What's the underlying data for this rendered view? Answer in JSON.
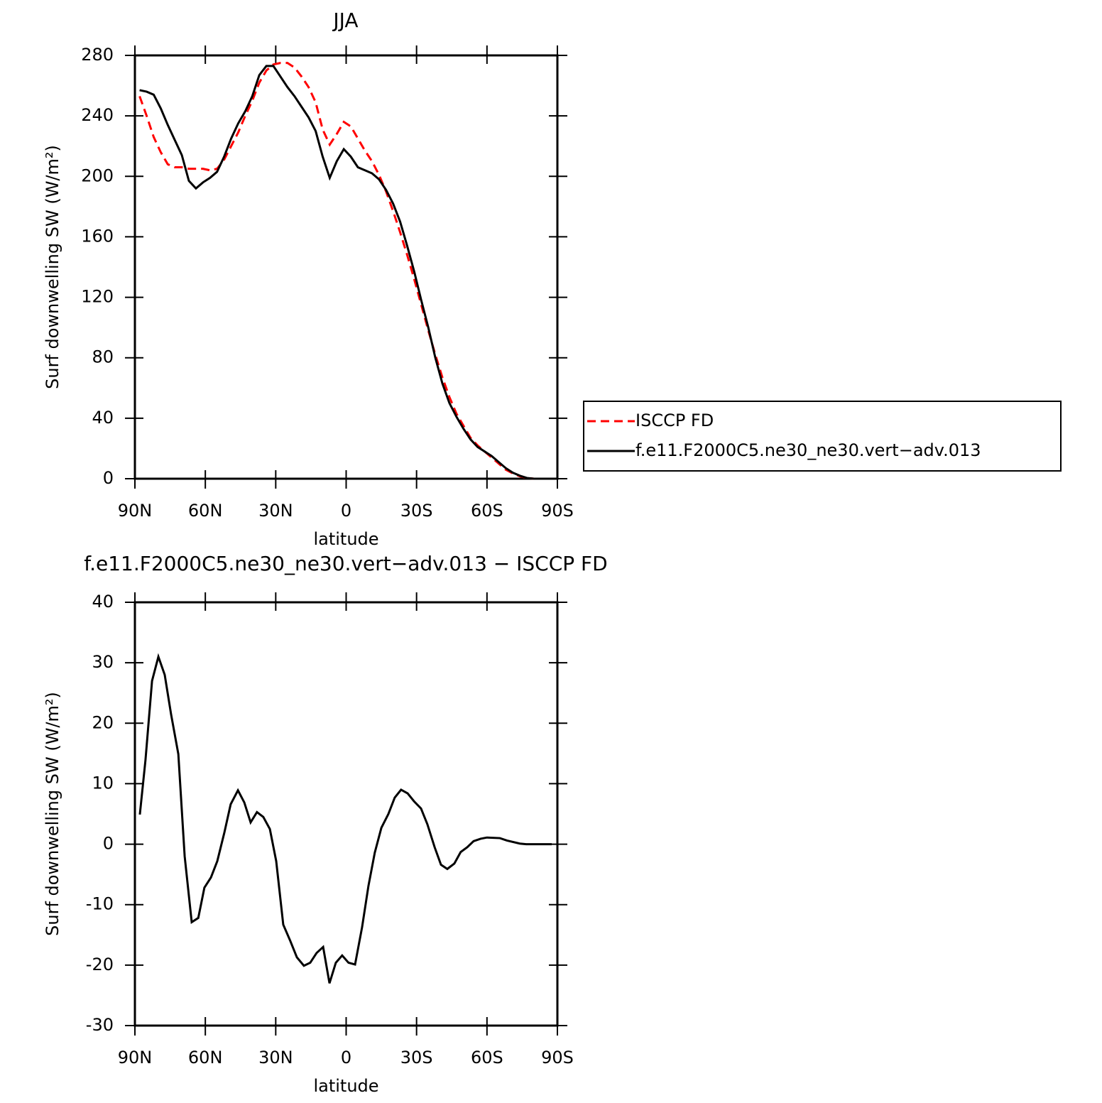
{
  "chart_data": [
    {
      "type": "line",
      "title": "JJA",
      "xlabel": "latitude",
      "ylabel": "Surf downwelling SW (W/m²)",
      "xlim": [
        90,
        -90
      ],
      "xticks": [
        {
          "value": 90,
          "label": "90N"
        },
        {
          "value": 60,
          "label": "60N"
        },
        {
          "value": 30,
          "label": "30N"
        },
        0,
        {
          "value": -30,
          "label": "30S"
        },
        {
          "value": -60,
          "label": "60S"
        },
        {
          "value": -90,
          "label": "90S"
        }
      ],
      "ylim": [
        0,
        280
      ],
      "yticks": [
        0,
        40,
        80,
        120,
        160,
        200,
        240,
        280
      ],
      "legend": "right",
      "x": [
        88,
        85,
        82,
        79,
        76,
        73,
        70,
        67,
        64,
        61,
        58,
        55,
        52,
        49,
        46,
        43,
        40,
        37,
        34,
        31,
        28,
        25,
        22,
        19,
        16,
        13,
        10,
        7,
        4,
        1,
        -2,
        -5,
        -8,
        -11,
        -14,
        -17,
        -20,
        -23,
        -26,
        -29,
        -32,
        -35,
        -38,
        -41,
        -44,
        -47,
        -50,
        -53,
        -56,
        -59,
        -62,
        -65,
        -68,
        -71,
        -74,
        -77,
        -80,
        -83,
        -86,
        -89
      ],
      "series": [
        {
          "name": "ISCCP FD",
          "color": "#ff0000",
          "style": "dashed",
          "values": [
            253,
            240,
            226,
            216,
            208,
            206,
            206,
            205,
            205,
            205,
            204,
            205,
            211,
            220,
            229,
            240,
            250,
            262,
            270,
            274,
            275,
            275,
            272,
            266,
            259,
            249,
            231,
            221,
            228,
            236,
            233,
            225,
            217,
            210,
            201,
            190,
            177,
            163,
            148,
            132,
            115,
            98,
            82,
            67,
            54,
            43,
            35,
            27,
            22,
            18,
            14,
            10,
            6,
            3.5,
            1.6,
            0.5,
            0,
            0,
            0,
            0
          ]
        },
        {
          "name": "f.e11.F2000C5.ne30_ne30.vert−adv.013",
          "color": "#000000",
          "style": "solid",
          "values": [
            257,
            256,
            254,
            245,
            234,
            224,
            214,
            197,
            192,
            196,
            199,
            203,
            213,
            225,
            235,
            243,
            253,
            267,
            273,
            273,
            266,
            259,
            253,
            246,
            239,
            230,
            213,
            199,
            210,
            218,
            213,
            206,
            204,
            202,
            198,
            191,
            182,
            170,
            154,
            137,
            118,
            100,
            80,
            63,
            50,
            41,
            33,
            26,
            21,
            18,
            15,
            11,
            7,
            4,
            2,
            0.5,
            0,
            0,
            0,
            0
          ]
        }
      ]
    },
    {
      "type": "line",
      "title": "f.e11.F2000C5.ne30_ne30.vert−adv.013 − ISCCP FD",
      "xlabel": "latitude",
      "ylabel": "Surf downwelling SW (W/m²)",
      "xlim": [
        90,
        -90
      ],
      "xticks": [
        {
          "value": 90,
          "label": "90N"
        },
        {
          "value": 60,
          "label": "60N"
        },
        {
          "value": 30,
          "label": "30N"
        },
        0,
        {
          "value": -30,
          "label": "30S"
        },
        {
          "value": -60,
          "label": "60S"
        },
        {
          "value": -90,
          "label": "90S"
        }
      ],
      "ylim": [
        -30,
        40
      ],
      "yticks": [
        -30,
        -20,
        -10,
        0,
        10,
        20,
        30,
        40
      ],
      "x": [
        87.9,
        85.5,
        82.7,
        80,
        77.3,
        74.6,
        71.5,
        68.8,
        65.8,
        63,
        60.4,
        57.6,
        54.9,
        51.9,
        49.2,
        46.1,
        43.4,
        40.7,
        38,
        35.3,
        32.5,
        29.8,
        26.8,
        23.8,
        21,
        18,
        15.3,
        12.6,
        9.8,
        7.1,
        4.4,
        1.7,
        -1,
        -3.8,
        -6.8,
        -9.5,
        -12.2,
        -15,
        -18,
        -20.7,
        -23.4,
        -26.2,
        -28.9,
        -31.9,
        -34.6,
        -37.7,
        -40.4,
        -43.1,
        -46.1,
        -48.8,
        -51.6,
        -54.3,
        -57.3,
        -60,
        -65.5,
        -68.5,
        -74,
        -76.7,
        -87.6
      ],
      "series": [
        {
          "name": "f.e11.F2000C5.ne30_ne30.vert−adv.013 − ISCCP FD",
          "color": "#000000",
          "style": "solid",
          "values": [
            4.9,
            13.9,
            27,
            31,
            28,
            21.5,
            14.9,
            -2,
            -12.9,
            -12.2,
            -7.2,
            -5.5,
            -2.8,
            1.9,
            6.6,
            8.9,
            6.9,
            3.6,
            5.3,
            4.5,
            2.5,
            -2.8,
            -13.3,
            -16,
            -18.7,
            -20.1,
            -19.6,
            -18,
            -17,
            -23,
            -19.6,
            -18.4,
            -19.6,
            -19.9,
            -13.7,
            -6.9,
            -1.4,
            2.7,
            5,
            7.7,
            9,
            8.4,
            7.1,
            5.9,
            3.3,
            -0.5,
            -3.4,
            -4.1,
            -3.2,
            -1.3,
            -0.5,
            0.5,
            0.9,
            1.1,
            1,
            0.6,
            0.1,
            0,
            0
          ]
        }
      ]
    }
  ]
}
